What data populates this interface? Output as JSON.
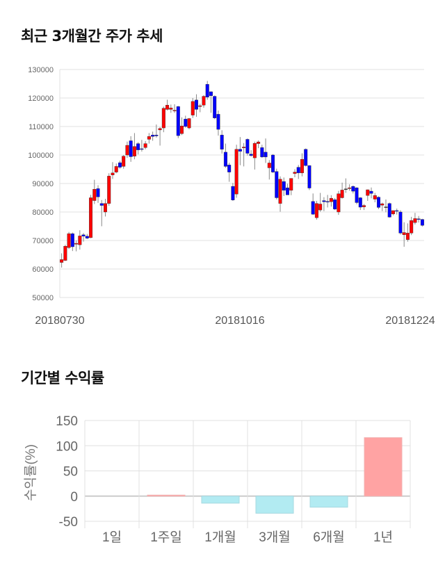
{
  "titles": {
    "price_trend": "최근 3개월간 주가 추세",
    "returns": "기간별 수익률"
  },
  "colors": {
    "up": "#ff0000",
    "down": "#0000ff",
    "bar_positive": "#ffa3a3",
    "bar_negative": "#b2ebf2",
    "grid": "#e0e0e0"
  },
  "chart_data": [
    {
      "type": "candlestick",
      "title": "최근 3개월간 주가 추세",
      "ylim": [
        50000,
        130000
      ],
      "yticks": [
        "130000",
        "120000",
        "110000",
        "100000",
        "90000",
        "80000",
        "70000",
        "60000",
        "50000"
      ],
      "xtick_labels": [
        "20180730",
        "20181016",
        "20181224"
      ],
      "grid": "horizontal",
      "ohlc": [
        [
          62300,
          65500,
          60500,
          63300
        ],
        [
          63000,
          68500,
          62800,
          68000
        ],
        [
          67500,
          73000,
          67000,
          72400
        ],
        [
          72400,
          72800,
          66300,
          67800
        ],
        [
          68700,
          70000,
          66200,
          69000
        ],
        [
          68500,
          73600,
          66800,
          71600
        ],
        [
          72000,
          72600,
          69600,
          71500
        ],
        [
          71500,
          72300,
          70500,
          70800
        ],
        [
          71000,
          86000,
          70800,
          85000
        ],
        [
          84000,
          91300,
          82800,
          88000
        ],
        [
          88200,
          89400,
          83200,
          85300
        ],
        [
          83000,
          84200,
          75000,
          82300
        ],
        [
          80000,
          84600,
          78400,
          83000
        ],
        [
          83000,
          93600,
          82200,
          92600
        ],
        [
          93000,
          97500,
          91600,
          93700
        ],
        [
          94000,
          97000,
          93600,
          96000
        ],
        [
          97300,
          98000,
          95200,
          95700
        ],
        [
          96000,
          100000,
          95200,
          99600
        ],
        [
          100000,
          104700,
          99000,
          103400
        ],
        [
          105000,
          106600,
          97600,
          99400
        ],
        [
          99600,
          107700,
          98500,
          103000
        ],
        [
          104000,
          104500,
          100200,
          101800
        ],
        [
          102200,
          105300,
          101200,
          102000
        ],
        [
          102600,
          104900,
          102000,
          104000
        ],
        [
          105500,
          107700,
          104000,
          106500
        ],
        [
          107000,
          108200,
          105000,
          106500
        ],
        [
          107000,
          110700,
          106100,
          106700
        ],
        [
          108800,
          109800,
          103300,
          109300
        ],
        [
          109500,
          117000,
          108000,
          116400
        ],
        [
          116000,
          119400,
          115600,
          117500
        ],
        [
          116000,
          117700,
          114800,
          116500
        ],
        [
          115500,
          117800,
          114800,
          115700
        ],
        [
          117000,
          117200,
          105900,
          106800
        ],
        [
          107500,
          113200,
          107000,
          110200
        ],
        [
          112600,
          113800,
          109600,
          110000
        ],
        [
          109500,
          113000,
          109000,
          112800
        ],
        [
          114000,
          120000,
          113000,
          118800
        ],
        [
          119300,
          121300,
          113400,
          116000
        ],
        [
          117000,
          118000,
          115000,
          117300
        ],
        [
          117500,
          121000,
          116600,
          120600
        ],
        [
          124800,
          126000,
          119400,
          120300
        ],
        [
          122200,
          122300,
          114800,
          120800
        ],
        [
          120600,
          120900,
          112600,
          113000
        ],
        [
          114300,
          115600,
          106800,
          109000
        ],
        [
          107000,
          108700,
          100500,
          102000
        ],
        [
          101000,
          104000,
          95500,
          96000
        ],
        [
          96500,
          97300,
          90600,
          94000
        ],
        [
          89000,
          90200,
          83900,
          84200
        ],
        [
          86300,
          103600,
          85000,
          102000
        ],
        [
          102000,
          106300,
          96400,
          101300
        ],
        [
          102500,
          104200,
          96000,
          102800
        ],
        [
          105500,
          105800,
          99800,
          100600
        ],
        [
          100300,
          101700,
          99400,
          99800
        ],
        [
          99000,
          104700,
          94900,
          104100
        ],
        [
          104000,
          105100,
          102400,
          104600
        ],
        [
          102600,
          103600,
          99000,
          99300
        ],
        [
          101000,
          105800,
          97200,
          99300
        ],
        [
          95500,
          98200,
          91400,
          97200
        ],
        [
          100000,
          100300,
          93700,
          94000
        ],
        [
          94200,
          95200,
          84400,
          85000
        ],
        [
          83000,
          92500,
          80100,
          91500
        ],
        [
          90700,
          92100,
          85600,
          87600
        ],
        [
          88500,
          89900,
          86000,
          86000
        ],
        [
          87600,
          91800,
          85900,
          91800
        ],
        [
          93500,
          95000,
          92200,
          94000
        ],
        [
          95700,
          96500,
          91600,
          93700
        ],
        [
          93700,
          100600,
          92500,
          98500
        ],
        [
          102000,
          102300,
          96000,
          96300
        ],
        [
          96300,
          96400,
          87700,
          88400
        ],
        [
          83700,
          86500,
          79000,
          79200
        ],
        [
          78000,
          83900,
          77300,
          83000
        ],
        [
          80700,
          86700,
          80100,
          82800
        ],
        [
          84000,
          85200,
          80300,
          83600
        ],
        [
          83700,
          86000,
          81600,
          83600
        ],
        [
          83600,
          85900,
          81900,
          84800
        ],
        [
          84300,
          84900,
          80700,
          81000
        ],
        [
          80000,
          87400,
          79000,
          86400
        ],
        [
          85000,
          90300,
          84700,
          87700
        ],
        [
          88100,
          91800,
          86700,
          88100
        ],
        [
          88200,
          89700,
          87500,
          88500
        ],
        [
          89000,
          89300,
          86500,
          87300
        ],
        [
          88500,
          88700,
          82700,
          83300
        ],
        [
          85000,
          85200,
          80700,
          81700
        ],
        [
          81800,
          82800,
          80700,
          82300
        ],
        [
          85800,
          87900,
          83900,
          87800
        ],
        [
          87300,
          88600,
          84800,
          86500
        ],
        [
          84500,
          86700,
          83400,
          85800
        ],
        [
          85200,
          85500,
          81000,
          81600
        ],
        [
          82400,
          83300,
          80300,
          82900
        ],
        [
          81800,
          84400,
          79900,
          81800
        ],
        [
          83000,
          83300,
          78000,
          78200
        ],
        [
          79300,
          80500,
          78800,
          80500
        ],
        [
          80500,
          81200,
          79100,
          80300
        ],
        [
          80000,
          80600,
          72100,
          72600
        ],
        [
          72000,
          76400,
          67800,
          72800
        ],
        [
          70300,
          76000,
          69600,
          72600
        ],
        [
          72600,
          78300,
          71900,
          77000
        ],
        [
          76300,
          79700,
          75600,
          77700
        ],
        [
          77600,
          78600,
          76300,
          77500
        ],
        [
          77400,
          77600,
          74900,
          75300
        ]
      ]
    },
    {
      "type": "bar",
      "title": "기간별 수익률",
      "ylabel": "수익률(%)",
      "ylim": [
        -50,
        150
      ],
      "yticks": [
        "150",
        "100",
        "50",
        "0",
        "-50"
      ],
      "categories": [
        "1일",
        "1주일",
        "1개월",
        "3개월",
        "6개월",
        "1년"
      ],
      "values": [
        0,
        2,
        -14,
        -34,
        -22,
        116
      ]
    }
  ]
}
